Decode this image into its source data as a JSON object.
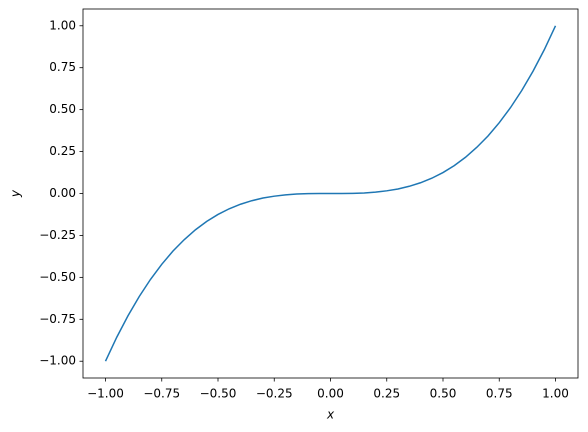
{
  "chart_data": {
    "type": "line",
    "xlabel": "x",
    "ylabel": "y",
    "x": [
      -1,
      -0.95,
      -0.9,
      -0.85,
      -0.8,
      -0.75,
      -0.7,
      -0.65,
      -0.6,
      -0.55,
      -0.5,
      -0.45,
      -0.4,
      -0.35,
      -0.3,
      -0.25,
      -0.2,
      -0.15,
      -0.1,
      -0.05,
      0,
      0.05,
      0.1,
      0.15,
      0.2,
      0.25,
      0.3,
      0.35,
      0.4,
      0.45,
      0.5,
      0.55,
      0.6,
      0.65,
      0.7,
      0.75,
      0.8,
      0.85,
      0.9,
      0.95,
      1
    ],
    "values": [
      -1,
      -0.857,
      -0.729,
      -0.614,
      -0.512,
      -0.422,
      -0.343,
      -0.275,
      -0.216,
      -0.166,
      -0.125,
      -0.091,
      -0.064,
      -0.043,
      -0.027,
      -0.016,
      -0.008,
      -0.003,
      -0.001,
      0,
      0,
      0,
      0.001,
      0.003,
      0.008,
      0.016,
      0.027,
      0.043,
      0.064,
      0.091,
      0.125,
      0.166,
      0.216,
      0.275,
      0.343,
      0.422,
      0.512,
      0.614,
      0.729,
      0.857,
      1
    ],
    "color": "#1f77b4",
    "xlim": [
      -1.1,
      1.1
    ],
    "ylim": [
      -1.1,
      1.1
    ],
    "xticks": [
      {
        "value": -1,
        "label": "−1.00"
      },
      {
        "value": -0.75,
        "label": "−0.75"
      },
      {
        "value": -0.5,
        "label": "−0.50"
      },
      {
        "value": -0.25,
        "label": "−0.25"
      },
      {
        "value": 0,
        "label": "0.00"
      },
      0.25,
      {
        "value": 0.5,
        "label": "0.50"
      },
      0.75,
      {
        "value": 1,
        "label": "1.00"
      }
    ],
    "yticks": [
      {
        "value": -1,
        "label": "−1.00"
      },
      {
        "value": -0.75,
        "label": "−0.75"
      },
      {
        "value": -0.5,
        "label": "−0.50"
      },
      {
        "value": -0.25,
        "label": "−0.25"
      },
      {
        "value": 0,
        "label": "0.00"
      },
      0.25,
      {
        "value": 0.5,
        "label": "0.50"
      },
      0.75,
      {
        "value": 1,
        "label": "1.00"
      }
    ],
    "grid": false
  }
}
